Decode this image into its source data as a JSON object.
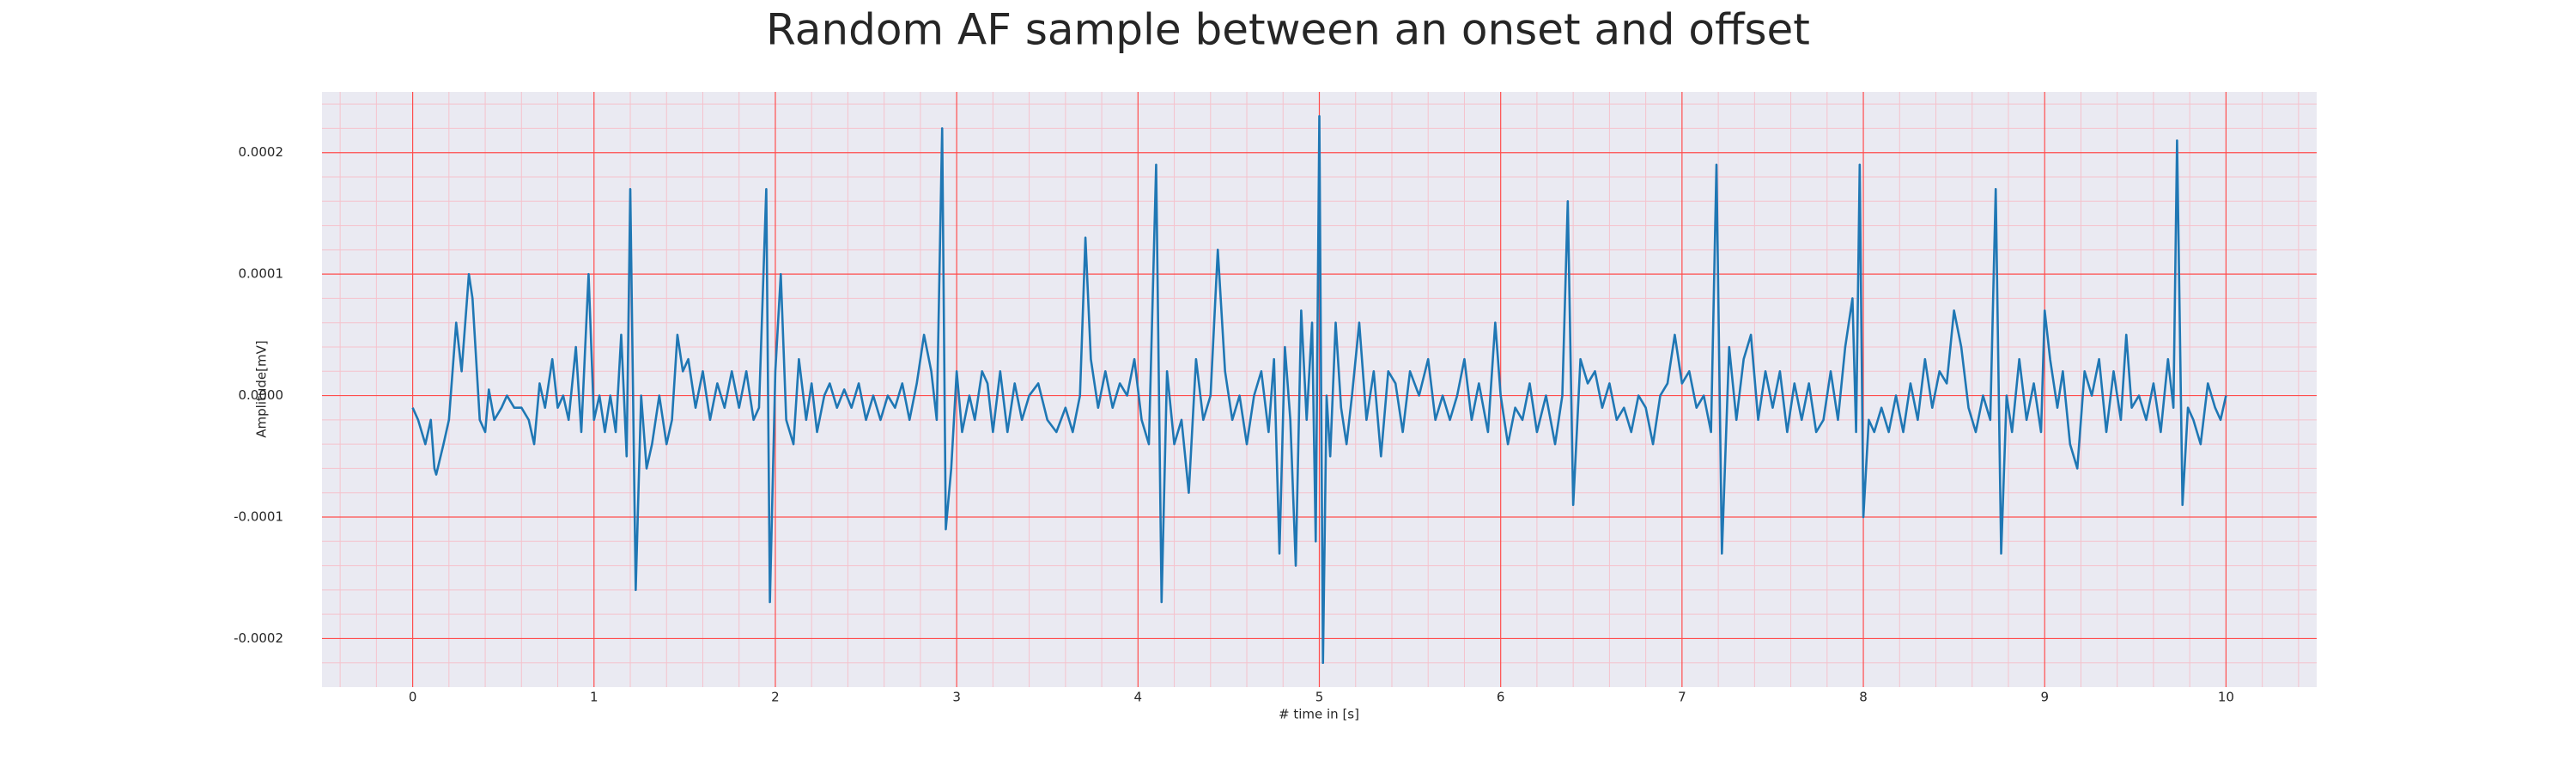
{
  "chart_data": {
    "type": "line",
    "title": "Random AF sample between an onset and offset",
    "xlabel": "# time in [s]",
    "ylabel": "Amplitude[mV]",
    "xlim": [
      -0.5,
      10.5
    ],
    "ylim": [
      -0.00024,
      0.00025
    ],
    "xticks": [
      0,
      1,
      2,
      3,
      4,
      5,
      6,
      7,
      8,
      9,
      10
    ],
    "yticks": [
      {
        "value": -0.0002,
        "label": "-0.0002"
      },
      {
        "value": -0.0001,
        "label": "-0.0001"
      },
      {
        "value": 0,
        "label": "0.0000"
      },
      {
        "value": 0.0001,
        "label": "0.0001"
      },
      {
        "value": 0.0002,
        "label": "0.0002"
      }
    ],
    "xminorticks": [
      -0.4,
      -0.2,
      0.2,
      0.4,
      0.6,
      0.8,
      1.2,
      1.4,
      1.6,
      1.8,
      2.2,
      2.4,
      2.6,
      2.8,
      3.2,
      3.4,
      3.6,
      3.8,
      4.2,
      4.4,
      4.6,
      4.8,
      5.2,
      5.4,
      5.6,
      5.8,
      6.2,
      6.4,
      6.6,
      6.8,
      7.2,
      7.4,
      7.6,
      7.8,
      8.2,
      8.4,
      8.6,
      8.8,
      9.2,
      9.4,
      9.6,
      9.8,
      10.2,
      10.4
    ],
    "yminorticks": [
      -0.00022,
      -0.00018,
      -0.00016,
      -0.00014,
      -0.00012,
      -8e-05,
      -6e-05,
      -4e-05,
      -2e-05,
      2e-05,
      4e-05,
      6e-05,
      8e-05,
      0.00012,
      0.00014,
      0.00016,
      0.00018,
      0.00022,
      0.00024
    ],
    "grid": true,
    "grid_color": "#ff4d4d",
    "minor_grid_color": "#f5c2cc",
    "background": "#eaeaf2",
    "x": [
      0,
      0.03,
      0.07,
      0.1,
      0.12,
      0.13,
      0.17,
      0.2,
      0.24,
      0.27,
      0.31,
      0.33,
      0.37,
      0.4,
      0.42,
      0.45,
      0.49,
      0.52,
      0.56,
      0.6,
      0.64,
      0.67,
      0.7,
      0.73,
      0.77,
      0.8,
      0.83,
      0.86,
      0.9,
      0.93,
      0.97,
      1.0,
      1.03,
      1.06,
      1.09,
      1.12,
      1.15,
      1.18,
      1.2,
      1.23,
      1.26,
      1.29,
      1.32,
      1.36,
      1.4,
      1.43,
      1.46,
      1.49,
      1.52,
      1.56,
      1.6,
      1.64,
      1.68,
      1.72,
      1.76,
      1.8,
      1.84,
      1.88,
      1.91,
      1.95,
      1.97,
      2.0,
      2.03,
      2.06,
      2.1,
      2.13,
      2.17,
      2.2,
      2.23,
      2.27,
      2.3,
      2.34,
      2.38,
      2.42,
      2.46,
      2.5,
      2.54,
      2.58,
      2.62,
      2.66,
      2.7,
      2.74,
      2.78,
      2.82,
      2.86,
      2.89,
      2.92,
      2.94,
      2.97,
      3.0,
      3.03,
      3.07,
      3.1,
      3.14,
      3.17,
      3.2,
      3.24,
      3.28,
      3.32,
      3.36,
      3.4,
      3.45,
      3.5,
      3.55,
      3.6,
      3.64,
      3.68,
      3.71,
      3.74,
      3.78,
      3.82,
      3.86,
      3.9,
      3.94,
      3.98,
      4.02,
      4.06,
      4.1,
      4.13,
      4.16,
      4.2,
      4.24,
      4.28,
      4.32,
      4.36,
      4.4,
      4.44,
      4.48,
      4.52,
      4.56,
      4.6,
      4.64,
      4.68,
      4.72,
      4.75,
      4.78,
      4.81,
      4.84,
      4.87,
      4.9,
      4.93,
      4.96,
      4.98,
      5.0,
      5.02,
      5.04,
      5.06,
      5.09,
      5.12,
      5.15,
      5.18,
      5.22,
      5.26,
      5.3,
      5.34,
      5.38,
      5.42,
      5.46,
      5.5,
      5.55,
      5.6,
      5.64,
      5.68,
      5.72,
      5.76,
      5.8,
      5.84,
      5.88,
      5.93,
      5.97,
      6.0,
      6.04,
      6.08,
      6.12,
      6.16,
      6.2,
      6.25,
      6.3,
      6.34,
      6.37,
      6.4,
      6.44,
      6.48,
      6.52,
      6.56,
      6.6,
      6.64,
      6.68,
      6.72,
      6.76,
      6.8,
      6.84,
      6.88,
      6.92,
      6.96,
      7.0,
      7.04,
      7.08,
      7.12,
      7.16,
      7.19,
      7.22,
      7.26,
      7.3,
      7.34,
      7.38,
      7.42,
      7.46,
      7.5,
      7.54,
      7.58,
      7.62,
      7.66,
      7.7,
      7.74,
      7.78,
      7.82,
      7.86,
      7.9,
      7.94,
      7.96,
      7.98,
      8.0,
      8.03,
      8.06,
      8.1,
      8.14,
      8.18,
      8.22,
      8.26,
      8.3,
      8.34,
      8.38,
      8.42,
      8.46,
      8.5,
      8.54,
      8.58,
      8.62,
      8.66,
      8.7,
      8.73,
      8.76,
      8.79,
      8.82,
      8.86,
      8.9,
      8.94,
      8.98,
      9.0,
      9.03,
      9.07,
      9.1,
      9.14,
      9.18,
      9.22,
      9.26,
      9.3,
      9.34,
      9.38,
      9.42,
      9.45,
      9.48,
      9.52,
      9.56,
      9.6,
      9.64,
      9.68,
      9.71,
      9.73,
      9.76,
      9.79,
      9.82,
      9.86,
      9.9,
      9.94,
      9.97,
      10.0
    ],
    "series": [
      {
        "color": "#1f77b4",
        "values": [
          -1e-05,
          -2e-05,
          -4e-05,
          -2e-05,
          -6e-05,
          -6.5e-05,
          -4e-05,
          -2e-05,
          6e-05,
          2e-05,
          0.0001,
          8e-05,
          -2e-05,
          -3e-05,
          5e-06,
          -2e-05,
          -1e-05,
          0,
          -1e-05,
          -1e-05,
          -2e-05,
          -4e-05,
          1e-05,
          -1e-05,
          3e-05,
          -1e-05,
          0,
          -2e-05,
          4e-05,
          -3e-05,
          0.0001,
          -2e-05,
          0,
          -3e-05,
          0,
          -3e-05,
          5e-05,
          -5e-05,
          0.00017,
          -0.00016,
          0,
          -6e-05,
          -4e-05,
          0,
          -4e-05,
          -2e-05,
          5e-05,
          2e-05,
          3e-05,
          -1e-05,
          2e-05,
          -2e-05,
          1e-05,
          -1e-05,
          2e-05,
          -1e-05,
          2e-05,
          -2e-05,
          -1e-05,
          0.00017,
          -0.00017,
          2e-05,
          0.0001,
          -2e-05,
          -4e-05,
          3e-05,
          -2e-05,
          1e-05,
          -3e-05,
          0,
          1e-05,
          -1e-05,
          5e-06,
          -1e-05,
          1e-05,
          -2e-05,
          0,
          -2e-05,
          0,
          -1e-05,
          1e-05,
          -2e-05,
          1e-05,
          5e-05,
          2e-05,
          -2e-05,
          0.00022,
          -0.00011,
          -6e-05,
          2e-05,
          -3e-05,
          0,
          -2e-05,
          2e-05,
          1e-05,
          -3e-05,
          2e-05,
          -3e-05,
          1e-05,
          -2e-05,
          0,
          1e-05,
          -2e-05,
          -3e-05,
          -1e-05,
          -3e-05,
          0,
          0.00013,
          3e-05,
          -1e-05,
          2e-05,
          -1e-05,
          1e-05,
          0,
          3e-05,
          -2e-05,
          -4e-05,
          0.00019,
          -0.00017,
          2e-05,
          -4e-05,
          -2e-05,
          -8e-05,
          3e-05,
          -2e-05,
          0,
          0.00012,
          2e-05,
          -2e-05,
          0,
          -4e-05,
          0,
          2e-05,
          -3e-05,
          3e-05,
          -0.00013,
          4e-05,
          -2e-05,
          -0.00014,
          7e-05,
          -2e-05,
          6e-05,
          -0.00012,
          0.00023,
          -0.00022,
          0,
          -5e-05,
          6e-05,
          -1e-05,
          -4e-05,
          0,
          6e-05,
          -2e-05,
          2e-05,
          -5e-05,
          2e-05,
          1e-05,
          -3e-05,
          2e-05,
          0,
          3e-05,
          -2e-05,
          0,
          -2e-05,
          0,
          3e-05,
          -2e-05,
          1e-05,
          -3e-05,
          6e-05,
          0,
          -4e-05,
          -1e-05,
          -2e-05,
          1e-05,
          -3e-05,
          0,
          -4e-05,
          0,
          0.00016,
          -9e-05,
          3e-05,
          1e-05,
          2e-05,
          -1e-05,
          1e-05,
          -2e-05,
          -1e-05,
          -3e-05,
          0,
          -1e-05,
          -4e-05,
          0,
          1e-05,
          5e-05,
          1e-05,
          2e-05,
          -1e-05,
          0,
          -3e-05,
          0.00019,
          -0.00013,
          4e-05,
          -2e-05,
          3e-05,
          5e-05,
          -2e-05,
          2e-05,
          -1e-05,
          2e-05,
          -3e-05,
          1e-05,
          -2e-05,
          1e-05,
          -3e-05,
          -2e-05,
          2e-05,
          -2e-05,
          4e-05,
          8e-05,
          -3e-05,
          0.00019,
          -0.0001,
          -2e-05,
          -3e-05,
          -1e-05,
          -3e-05,
          0,
          -3e-05,
          1e-05,
          -2e-05,
          3e-05,
          -1e-05,
          2e-05,
          1e-05,
          7e-05,
          4e-05,
          -1e-05,
          -3e-05,
          0,
          -2e-05,
          0.00017,
          -0.00013,
          0,
          -3e-05,
          3e-05,
          -2e-05,
          1e-05,
          -3e-05,
          7e-05,
          3e-05,
          -1e-05,
          2e-05,
          -4e-05,
          -6e-05,
          2e-05,
          0,
          3e-05,
          -3e-05,
          2e-05,
          -2e-05,
          5e-05,
          -1e-05,
          0,
          -2e-05,
          1e-05,
          -3e-05,
          3e-05,
          -1e-05,
          0.00021,
          -9e-05,
          -1e-05,
          -2e-05,
          -4e-05,
          1e-05,
          -1e-05,
          -2e-05,
          0
        ]
      }
    ]
  }
}
